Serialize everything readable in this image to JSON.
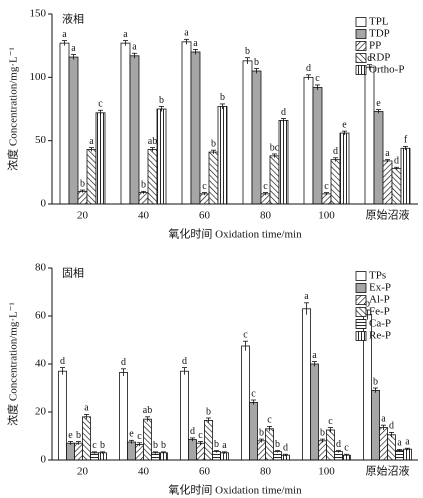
{
  "chart_data": [
    {
      "type": "bar",
      "annotation": "液相",
      "y_label": "浓度 Concentration/mg·L⁻¹",
      "x_label": "氧化时间 Oxidation time/min",
      "categories": [
        "20",
        "40",
        "60",
        "80",
        "100",
        "原始沼液"
      ],
      "ylim": [
        0,
        150
      ],
      "yticks": [
        0,
        50,
        100,
        150
      ],
      "series": [
        {
          "name": "TPL",
          "color": "#ffffff",
          "pattern": "none",
          "values": [
            127,
            127,
            128,
            113,
            100,
            108
          ],
          "errors": [
            2,
            2,
            2,
            2.5,
            2,
            2
          ],
          "labels": [
            "a",
            "a",
            "a",
            "b",
            "d",
            "c"
          ]
        },
        {
          "name": "TDP",
          "color": "#a6a6a6",
          "pattern": "none",
          "values": [
            116,
            117,
            120,
            105,
            92,
            73
          ],
          "errors": [
            2,
            2,
            2,
            2,
            2,
            1.5
          ],
          "labels": [
            "a",
            "a",
            "a",
            "b",
            "c",
            "e"
          ]
        },
        {
          "name": "PP",
          "color": "#ffffff",
          "pattern": "diag",
          "values": [
            10,
            9,
            8,
            8,
            8,
            34
          ],
          "errors": [
            1,
            1,
            1,
            1,
            1,
            1
          ],
          "labels": [
            "b",
            "b",
            "c",
            "c",
            "c",
            "a"
          ]
        },
        {
          "name": "RDP",
          "color": "#ffffff",
          "pattern": "anti",
          "values": [
            43,
            43,
            41,
            38,
            35,
            28
          ],
          "errors": [
            1.5,
            1.5,
            1.5,
            1.5,
            1.5,
            1
          ],
          "labels": [
            "a",
            "ab",
            "b",
            "bc",
            "d",
            "d"
          ]
        },
        {
          "name": "Ortho-P",
          "color": "#ffffff",
          "pattern": "vert",
          "values": [
            72,
            75,
            77,
            66,
            56,
            44
          ],
          "errors": [
            2,
            2,
            2,
            1.5,
            1.5,
            1.5
          ],
          "labels": [
            "c",
            "b",
            "b",
            "d",
            "e",
            "f"
          ]
        }
      ]
    },
    {
      "type": "bar",
      "annotation": "固相",
      "y_label": "浓度 Concentration/mg·L⁻¹",
      "x_label": "氧化时间 Oxidation time/min",
      "categories": [
        "20",
        "40",
        "60",
        "80",
        "100",
        "原始沼液"
      ],
      "ylim": [
        0,
        80
      ],
      "yticks": [
        0,
        20,
        40,
        60,
        80
      ],
      "series": [
        {
          "name": "TPs",
          "color": "#ffffff",
          "pattern": "none",
          "values": [
            37,
            36.5,
            37,
            47.5,
            63,
            60.5
          ],
          "errors": [
            1.5,
            1.5,
            1.5,
            2,
            2.5,
            2
          ],
          "labels": [
            "d",
            "d",
            "d",
            "c",
            "a",
            "b"
          ]
        },
        {
          "name": "Ex-P",
          "color": "#a6a6a6",
          "pattern": "none",
          "values": [
            7,
            7.5,
            8.5,
            24,
            40,
            29
          ],
          "errors": [
            0.7,
            0.7,
            0.7,
            1,
            1,
            1
          ],
          "labels": [
            "e",
            "e",
            "d",
            "c",
            "a",
            "b"
          ]
        },
        {
          "name": "Al-P",
          "color": "#ffffff",
          "pattern": "diag",
          "values": [
            7,
            6.5,
            7,
            8,
            8,
            13.5
          ],
          "errors": [
            0.7,
            0.7,
            0.7,
            0.7,
            0.7,
            1
          ],
          "labels": [
            "b",
            "c",
            "c",
            "b",
            "b",
            "a"
          ]
        },
        {
          "name": "Fe-P",
          "color": "#ffffff",
          "pattern": "anti",
          "values": [
            18,
            17,
            16.5,
            13,
            12.5,
            10.5
          ],
          "errors": [
            1,
            1,
            1,
            1,
            1,
            1
          ],
          "labels": [
            "a",
            "ab",
            "b",
            "c",
            "c",
            "d"
          ]
        },
        {
          "name": "Ca-P",
          "color": "#ffffff",
          "pattern": "horiz",
          "values": [
            3,
            3,
            3.5,
            3.5,
            3.5,
            4
          ],
          "errors": [
            0.4,
            0.4,
            0.4,
            0.4,
            0.4,
            0.4
          ],
          "labels": [
            "c",
            "b",
            "b",
            "b",
            "d",
            "a"
          ]
        },
        {
          "name": "Re-P",
          "color": "#ffffff",
          "pattern": "vert",
          "values": [
            3,
            3,
            3,
            2,
            2,
            4.5
          ],
          "errors": [
            0.4,
            0.4,
            0.4,
            0.4,
            0.4,
            0.4
          ],
          "labels": [
            "b",
            "b",
            "a",
            "d",
            "c",
            "a"
          ]
        }
      ]
    }
  ]
}
